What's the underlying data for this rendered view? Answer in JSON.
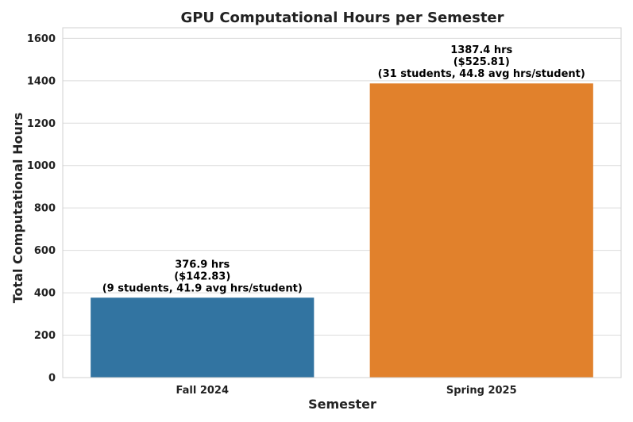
{
  "chart_data": {
    "type": "bar",
    "title": "GPU Computational Hours per Semester",
    "xlabel": "Semester",
    "ylabel": "Total Computational Hours",
    "categories": [
      "Fall 2024",
      "Spring 2025"
    ],
    "values": [
      376.9,
      1387.4
    ],
    "colors": [
      "#3274a1",
      "#e1812c"
    ],
    "annotations": [
      [
        "376.9 hrs",
        "($142.83)",
        "(9 students, 41.9 avg hrs/student)"
      ],
      [
        "1387.4 hrs",
        "($525.81)",
        "(31 students, 44.8 avg hrs/student)"
      ]
    ],
    "ylim": [
      0,
      1650
    ],
    "yticks": [
      0,
      200,
      400,
      600,
      800,
      1000,
      1200,
      1400,
      1600
    ],
    "grid": true,
    "legend": "none"
  }
}
